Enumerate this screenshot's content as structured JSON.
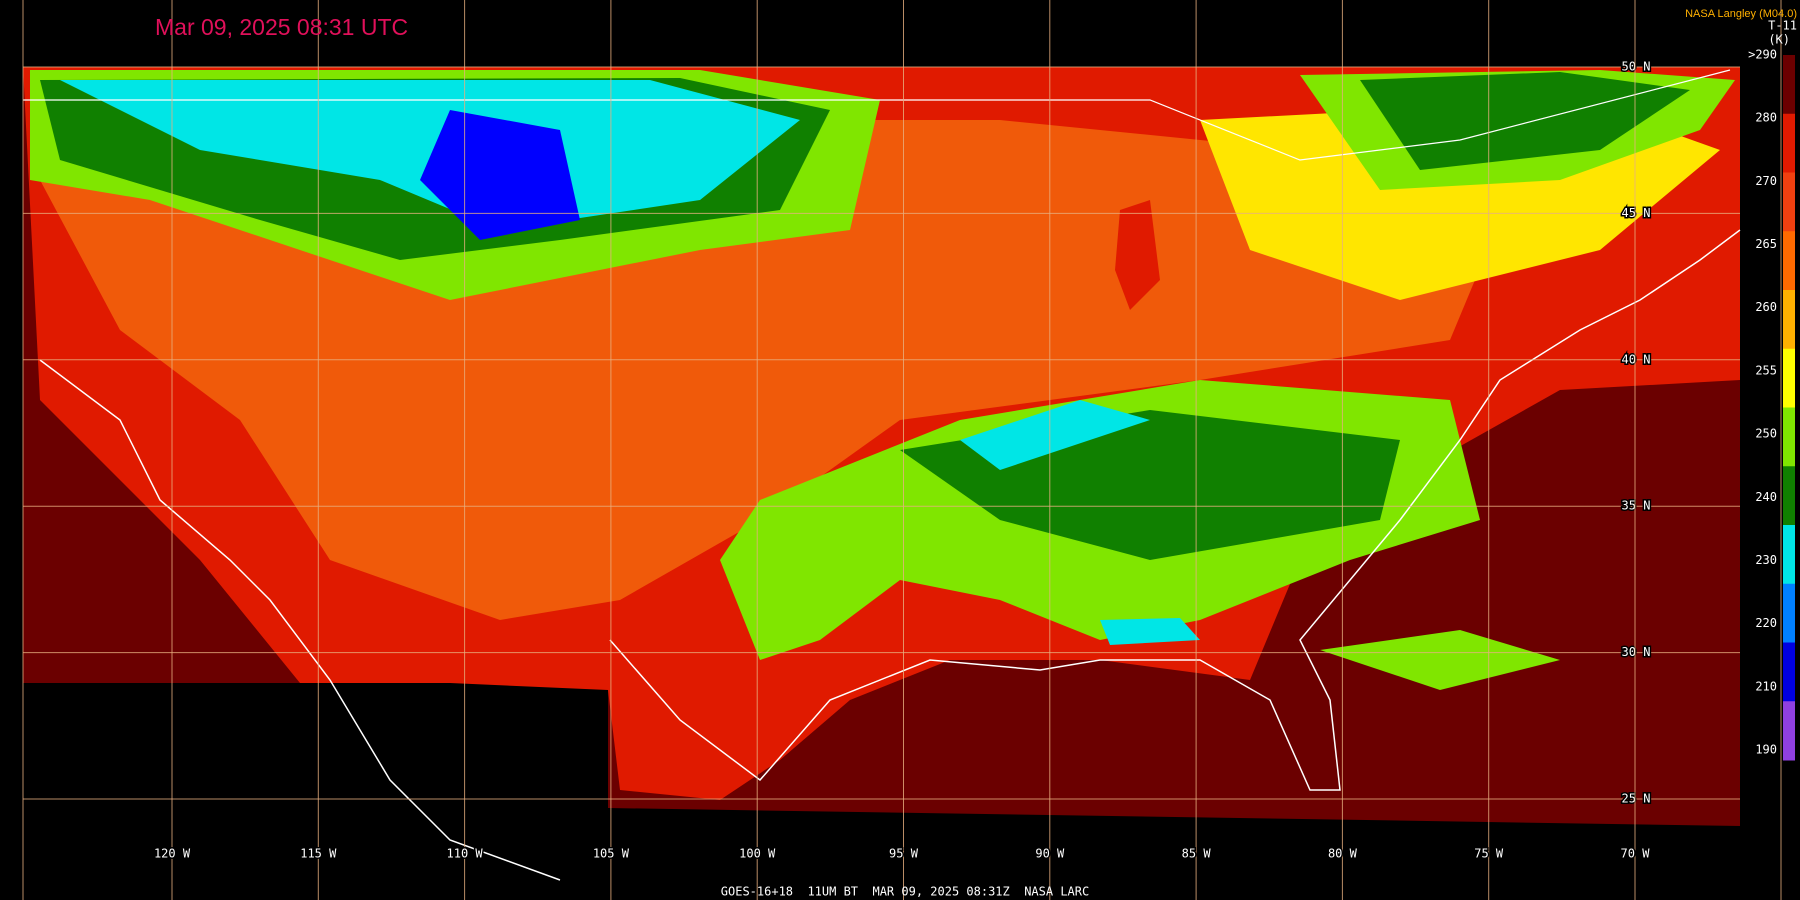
{
  "header": {
    "title": "Mar 09, 2025 08:31 UTC",
    "source": "NASA Langley (M04.0)",
    "product": "T-11",
    "unit": "(K)"
  },
  "legend": {
    "labels": [
      ">290",
      "280",
      "270",
      "265",
      "260",
      "255",
      "250",
      "240",
      "230",
      "220",
      "210",
      "190"
    ],
    "colors": [
      "#6b0000",
      "#e01a00",
      "#f04010",
      "#ff6a00",
      "#ffb000",
      "#ffff00",
      "#80e600",
      "#108000",
      "#00e6e6",
      "#0080ff",
      "#0000e0",
      "#9040e0"
    ]
  },
  "grid": {
    "latitudes": [
      "50 N",
      "45 N",
      "40 N",
      "35 N",
      "30 N",
      "25 N"
    ],
    "longitudes": [
      "120 W",
      "115 W",
      "110 W",
      "105 W",
      "100 W",
      "95 W",
      "90 W",
      "85 W",
      "80 W",
      "75 W",
      "70 W"
    ]
  },
  "footer": "GOES-16+18  11UM BT  MAR 09, 2025 08:31Z  NASA LARC"
}
